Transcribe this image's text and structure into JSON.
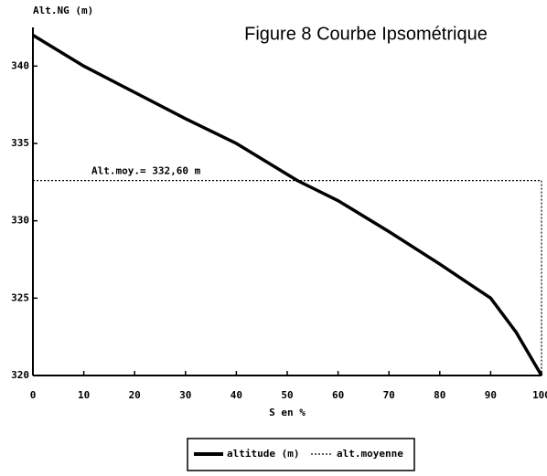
{
  "chart_data": {
    "type": "line",
    "title": "Figure 8 Courbe Ipsométrique",
    "y_label": "Alt.NG (m)",
    "x_label": "S en %",
    "x": [
      0,
      10,
      20,
      30,
      40,
      50,
      52,
      60,
      70,
      80,
      90,
      95,
      100
    ],
    "series": [
      {
        "name": "altitude (m)",
        "color": "#000000",
        "values": [
          342,
          340,
          338.3,
          336.6,
          335,
          333,
          332.6,
          331.3,
          329.3,
          327.2,
          325,
          322.8,
          320
        ]
      }
    ],
    "mean_line": {
      "name": "alt.moyenne",
      "value": 332.6,
      "annotation": "Alt.moy.= 332,60 m"
    },
    "xlim": [
      0,
      100
    ],
    "ylim": [
      320,
      342.5
    ],
    "xticks": [
      0,
      10,
      20,
      30,
      40,
      50,
      60,
      70,
      80,
      90,
      100
    ],
    "yticks": [
      320,
      325,
      330,
      335,
      340
    ],
    "grid": false
  }
}
